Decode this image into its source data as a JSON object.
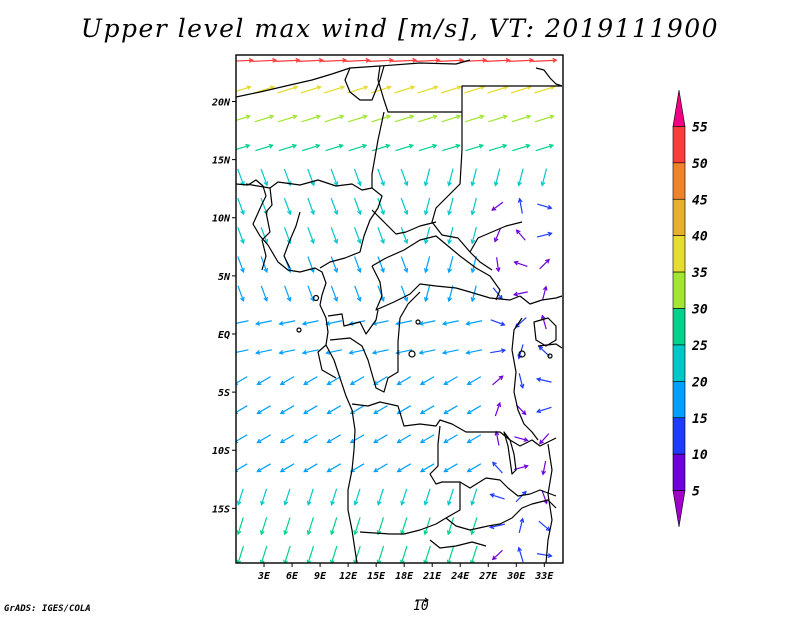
{
  "title": "Upper level max wind [m/s], VT: 2019111900",
  "credit": "GrADS: IGES/COLA",
  "reference_vector": {
    "label": "10",
    "speed": 10
  },
  "map": {
    "lon_range": [
      0,
      35
    ],
    "lat_range": [
      -19.7,
      24
    ],
    "lon_ticks": [
      {
        "v": 3,
        "t": "3E"
      },
      {
        "v": 6,
        "t": "6E"
      },
      {
        "v": 9,
        "t": "9E"
      },
      {
        "v": 12,
        "t": "12E"
      },
      {
        "v": 15,
        "t": "15E"
      },
      {
        "v": 18,
        "t": "18E"
      },
      {
        "v": 21,
        "t": "21E"
      },
      {
        "v": 24,
        "t": "24E"
      },
      {
        "v": 27,
        "t": "27E"
      },
      {
        "v": 30,
        "t": "30E"
      },
      {
        "v": 33,
        "t": "33E"
      }
    ],
    "lat_ticks": [
      {
        "v": 20,
        "t": "20N"
      },
      {
        "v": 15,
        "t": "15N"
      },
      {
        "v": 10,
        "t": "10N"
      },
      {
        "v": 5,
        "t": "5N"
      },
      {
        "v": 0,
        "t": "EQ"
      },
      {
        "v": -5,
        "t": "5S"
      },
      {
        "v": -10,
        "t": "10S"
      },
      {
        "v": -15,
        "t": "15S"
      }
    ]
  },
  "colorbar": {
    "labels": [
      "5",
      "10",
      "15",
      "20",
      "25",
      "30",
      "35",
      "40",
      "45",
      "50",
      "55"
    ],
    "colors": [
      "#a000c8",
      "#6e00dc",
      "#1e3cff",
      "#00a0ff",
      "#00c8c8",
      "#00d28c",
      "#a0e632",
      "#e6dc32",
      "#e6af2d",
      "#f08228",
      "#fa3c3c",
      "#f00082"
    ]
  },
  "wind_field": {
    "grid_spacing_deg": 2.5,
    "speed_range_ms": [
      5,
      55
    ],
    "flow_summary": [
      {
        "region": "north edge 22-24N",
        "direction": "eastward",
        "speed_ms": "45-55"
      },
      {
        "region": "15-20N",
        "direction": "east-northeast",
        "speed_ms": "25-40"
      },
      {
        "region": "5-15N west",
        "direction": "south-southeast",
        "speed_ms": "15-25"
      },
      {
        "region": "5-15N east",
        "direction": "south-southwest",
        "speed_ms": "15-25"
      },
      {
        "region": "equator",
        "direction": "westward",
        "speed_ms": "15-25"
      },
      {
        "region": "5-12S west",
        "direction": "west-southwest",
        "speed_ms": "15-20"
      },
      {
        "region": "15-20S",
        "direction": "south-southwest",
        "speed_ms": "20-30"
      },
      {
        "region": "east 10N-10S near 30E",
        "direction": "variable",
        "speed_ms": "5-15"
      }
    ]
  }
}
